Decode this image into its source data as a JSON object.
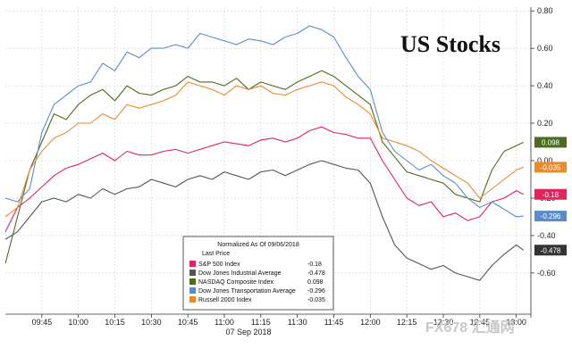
{
  "chart_data": {
    "type": "line",
    "title": "US Stocks",
    "date_label": "07 Sep 2018",
    "ylim": [
      -0.82,
      0.82
    ],
    "yticks": [
      "0.80",
      "0.60",
      "0.40",
      "0.20",
      "0.00",
      "-0.20",
      "-0.40",
      "-0.60"
    ],
    "ytick_values": [
      0.8,
      0.6,
      0.4,
      0.2,
      0.0,
      -0.2,
      -0.4,
      -0.6
    ],
    "xticks": [
      "09:45",
      "10:00",
      "10:15",
      "10:30",
      "10:45",
      "11:00",
      "11:15",
      "11:30",
      "11:45",
      "12:00",
      "12:15",
      "12:30",
      "12:45",
      "13:00"
    ],
    "xtick_values": [
      585,
      600,
      615,
      630,
      645,
      660,
      675,
      690,
      705,
      720,
      735,
      750,
      765,
      780
    ],
    "xlim": [
      570,
      786
    ],
    "grid": true,
    "legend": {
      "placement": "bottom-center",
      "header1": "Normalized As Of 09/06/2018",
      "header2": "Last Price",
      "entries": [
        {
          "name": "S&P 500 Index",
          "value": "-0.18",
          "color": "#e0245e"
        },
        {
          "name": "Dow Jones Industrial Average",
          "value": "-0.478",
          "color": "#555555"
        },
        {
          "name": "NASDAQ Composite Index",
          "value": "0.098",
          "color": "#4d6b1f"
        },
        {
          "name": "Dow Jones Transportation Average",
          "value": "-0.296",
          "color": "#5b8cc9"
        },
        {
          "name": "Russell 2000 Index",
          "value": "-0.035",
          "color": "#e88a2e"
        }
      ]
    },
    "series": [
      {
        "name": "S&P 500 Index",
        "color": "#e0245e",
        "x": [
          570,
          575,
          580,
          585,
          590,
          595,
          600,
          605,
          610,
          615,
          620,
          625,
          630,
          635,
          640,
          645,
          650,
          655,
          660,
          665,
          670,
          675,
          680,
          685,
          690,
          695,
          700,
          705,
          710,
          715,
          720,
          725,
          730,
          735,
          740,
          745,
          750,
          755,
          760,
          765,
          770,
          775,
          780,
          783
        ],
        "y": [
          -0.38,
          -0.25,
          -0.2,
          -0.14,
          -0.08,
          -0.04,
          -0.02,
          0.01,
          0.04,
          0.0,
          0.05,
          0.03,
          0.03,
          0.05,
          0.06,
          0.04,
          0.06,
          0.08,
          0.1,
          0.09,
          0.08,
          0.11,
          0.12,
          0.1,
          0.12,
          0.16,
          0.18,
          0.15,
          0.14,
          0.12,
          0.12,
          0.0,
          -0.1,
          -0.2,
          -0.24,
          -0.22,
          -0.3,
          -0.28,
          -0.32,
          -0.3,
          -0.22,
          -0.2,
          -0.16,
          -0.18
        ]
      },
      {
        "name": "Dow Jones Industrial Average",
        "color": "#555555",
        "x": [
          570,
          575,
          580,
          585,
          590,
          595,
          600,
          605,
          610,
          615,
          620,
          625,
          630,
          635,
          640,
          645,
          650,
          655,
          660,
          665,
          670,
          675,
          680,
          685,
          690,
          695,
          700,
          705,
          710,
          715,
          720,
          725,
          730,
          735,
          740,
          745,
          750,
          755,
          760,
          765,
          770,
          775,
          780,
          783
        ],
        "y": [
          -0.42,
          -0.38,
          -0.3,
          -0.22,
          -0.2,
          -0.22,
          -0.18,
          -0.2,
          -0.15,
          -0.18,
          -0.15,
          -0.14,
          -0.1,
          -0.12,
          -0.14,
          -0.1,
          -0.08,
          -0.1,
          -0.06,
          -0.08,
          -0.1,
          -0.06,
          -0.05,
          -0.08,
          -0.05,
          -0.02,
          0.0,
          -0.02,
          -0.04,
          -0.05,
          -0.12,
          -0.3,
          -0.45,
          -0.52,
          -0.55,
          -0.58,
          -0.56,
          -0.6,
          -0.62,
          -0.64,
          -0.56,
          -0.5,
          -0.45,
          -0.478
        ]
      },
      {
        "name": "NASDAQ Composite Index",
        "color": "#4d6b1f",
        "x": [
          570,
          575,
          580,
          585,
          590,
          595,
          600,
          605,
          610,
          615,
          620,
          625,
          630,
          635,
          640,
          645,
          650,
          655,
          660,
          665,
          670,
          675,
          680,
          685,
          690,
          695,
          700,
          705,
          710,
          715,
          720,
          725,
          730,
          735,
          740,
          745,
          750,
          755,
          760,
          765,
          770,
          775,
          780,
          783
        ],
        "y": [
          -0.55,
          -0.3,
          -0.05,
          0.1,
          0.25,
          0.22,
          0.3,
          0.35,
          0.38,
          0.32,
          0.4,
          0.36,
          0.35,
          0.38,
          0.4,
          0.45,
          0.42,
          0.42,
          0.4,
          0.44,
          0.38,
          0.42,
          0.4,
          0.38,
          0.42,
          0.45,
          0.48,
          0.45,
          0.4,
          0.35,
          0.3,
          0.1,
          0.02,
          -0.06,
          -0.08,
          -0.1,
          -0.12,
          -0.18,
          -0.2,
          -0.22,
          -0.05,
          0.05,
          0.08,
          0.098
        ]
      },
      {
        "name": "Dow Jones Transportation Average",
        "color": "#5b8cc9",
        "x": [
          570,
          575,
          580,
          585,
          590,
          595,
          600,
          605,
          610,
          615,
          620,
          625,
          630,
          635,
          640,
          645,
          650,
          655,
          660,
          665,
          670,
          675,
          680,
          685,
          690,
          695,
          700,
          705,
          710,
          715,
          720,
          725,
          730,
          735,
          740,
          745,
          750,
          755,
          760,
          765,
          770,
          775,
          780,
          783
        ],
        "y": [
          -0.2,
          -0.22,
          -0.15,
          0.15,
          0.3,
          0.35,
          0.4,
          0.42,
          0.52,
          0.48,
          0.58,
          0.55,
          0.6,
          0.6,
          0.62,
          0.6,
          0.68,
          0.66,
          0.64,
          0.62,
          0.65,
          0.64,
          0.62,
          0.66,
          0.68,
          0.72,
          0.7,
          0.66,
          0.55,
          0.45,
          0.38,
          0.15,
          0.05,
          0.0,
          -0.05,
          -0.02,
          -0.08,
          -0.12,
          -0.2,
          -0.25,
          -0.22,
          -0.26,
          -0.3,
          -0.296
        ]
      },
      {
        "name": "Russell 2000 Index",
        "color": "#e88a2e",
        "x": [
          570,
          575,
          580,
          585,
          590,
          595,
          600,
          605,
          610,
          615,
          620,
          625,
          630,
          635,
          640,
          645,
          650,
          655,
          660,
          665,
          670,
          675,
          680,
          685,
          690,
          695,
          700,
          705,
          710,
          715,
          720,
          725,
          730,
          735,
          740,
          745,
          750,
          755,
          760,
          765,
          770,
          775,
          780,
          783
        ],
        "y": [
          -0.3,
          -0.25,
          -0.05,
          0.05,
          0.12,
          0.15,
          0.2,
          0.2,
          0.25,
          0.22,
          0.3,
          0.28,
          0.3,
          0.32,
          0.35,
          0.42,
          0.4,
          0.38,
          0.35,
          0.4,
          0.38,
          0.4,
          0.36,
          0.35,
          0.38,
          0.4,
          0.42,
          0.4,
          0.34,
          0.3,
          0.25,
          0.12,
          0.1,
          0.08,
          0.05,
          0.0,
          -0.04,
          -0.08,
          -0.12,
          -0.2,
          -0.15,
          -0.1,
          -0.05,
          -0.035
        ]
      }
    ],
    "end_tags": [
      {
        "label": "0.098",
        "value": 0.098,
        "bg": "#4d6b1f",
        "fg": "#ffffff"
      },
      {
        "label": "-0.035",
        "value": -0.035,
        "bg": "#e88a2e",
        "fg": "#ffffff"
      },
      {
        "label": "-0.18",
        "value": -0.18,
        "bg": "#e0245e",
        "fg": "#ffffff"
      },
      {
        "label": "-0.296",
        "value": -0.296,
        "bg": "#5b8cc9",
        "fg": "#ffffff"
      },
      {
        "label": "-0.478",
        "value": -0.478,
        "bg": "#333333",
        "fg": "#ffffff"
      }
    ]
  },
  "watermark": "FX678 汇通网"
}
